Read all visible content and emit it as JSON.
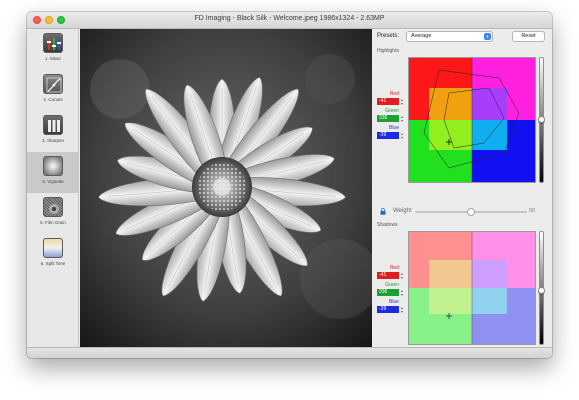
{
  "window": {
    "title": "FD Imaging - Black Silk - Welcome.jpeg 1986x1324 - 2.63MP"
  },
  "sidebar": {
    "items": [
      {
        "label": "1. Mixer",
        "icon": "mixer-icon",
        "active": false
      },
      {
        "label": "2. Curves",
        "icon": "curves-icon",
        "active": false
      },
      {
        "label": "3. Sharpen",
        "icon": "sharpen-icon",
        "active": false
      },
      {
        "label": "4. Vignette",
        "icon": "vignette-icon",
        "active": true
      },
      {
        "label": "5. Film Grain",
        "icon": "film-grain-icon",
        "active": false
      },
      {
        "label": "6. Split Tone",
        "icon": "split-tone-icon",
        "active": false
      }
    ]
  },
  "panel": {
    "presets_label": "Presets:",
    "preset_value": "Average",
    "reset_label": "Reset",
    "highlights": {
      "label": "Highlights",
      "red_label": "Red",
      "red_value": "-41",
      "green_label": "Green",
      "green_value": "336",
      "blue_label": "Blue",
      "blue_value": "-39"
    },
    "weight": {
      "label": "Weight",
      "value": "50",
      "fraction": 0.5
    },
    "shadows": {
      "label": "Shadows",
      "red_label": "Red",
      "red_value": "-41",
      "green_label": "Green",
      "green_value": "336",
      "blue_label": "Blue",
      "blue_value": "-39"
    }
  },
  "colors": {
    "red_field": "#e02020",
    "green_field": "#1ea032",
    "blue_field": "#1e2ce0",
    "red_text": "#d42a2a",
    "green_text": "#1e9a32",
    "blue_text": "#2030d8"
  }
}
